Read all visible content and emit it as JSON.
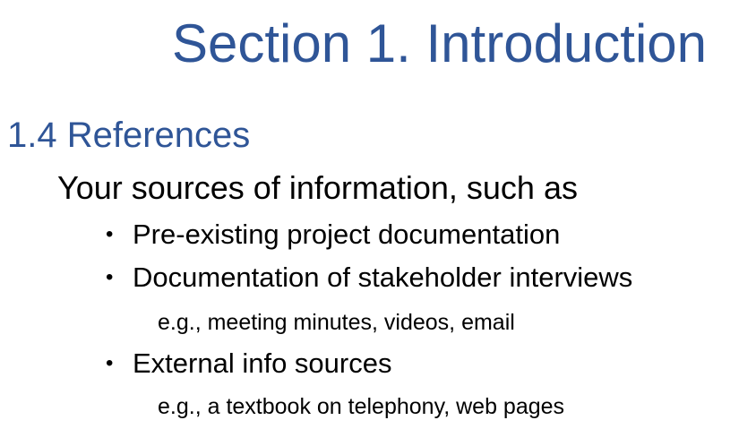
{
  "slide": {
    "title": "Section 1. Introduction",
    "section_heading": "1.4 References",
    "intro": "Your sources of information, such as",
    "bullet_glyph": "•",
    "items": [
      {
        "label": "Pre-existing project documentation"
      },
      {
        "label": "Documentation of stakeholder interviews",
        "note": "e.g., meeting minutes, videos, email"
      },
      {
        "label": "External info sources",
        "note": "e.g., a textbook on telephony, web pages"
      }
    ]
  },
  "colors": {
    "heading": "#2f5597",
    "body_text": "#000000",
    "background": "#ffffff"
  }
}
